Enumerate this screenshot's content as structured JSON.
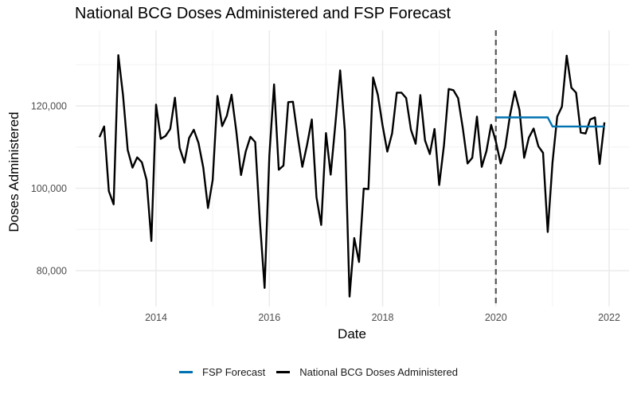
{
  "chart_data": {
    "type": "line",
    "title": "National BCG Doses Administered and FSP Forecast",
    "xlabel": "Date",
    "ylabel": "Doses Administered",
    "x_ticks": [
      "2014",
      "2016",
      "2018",
      "2020",
      "2022"
    ],
    "y_ticks": [
      "80,000",
      "100,000",
      "120,000"
    ],
    "y_tick_values": [
      80000,
      100000,
      120000
    ],
    "xlim": [
      "2012-11",
      "2022-03"
    ],
    "ylim": [
      70000,
      135000
    ],
    "grid": true,
    "legend_position": "bottom",
    "vline": {
      "date": "2020-01",
      "style": "dashed",
      "color": "#555555"
    },
    "series": [
      {
        "name": "National BCG Doses Administered",
        "color": "#000000",
        "start": "2013-01",
        "frequency": "monthly",
        "values": [
          112400,
          115000,
          99300,
          96100,
          132300,
          122600,
          109300,
          105000,
          107500,
          106300,
          102000,
          87200,
          120300,
          112000,
          112700,
          114400,
          122000,
          109800,
          106200,
          112200,
          114200,
          111000,
          105000,
          95200,
          102000,
          122400,
          115100,
          117600,
          122700,
          113800,
          103200,
          108900,
          112500,
          111200,
          92000,
          75800,
          108000,
          125200,
          104500,
          105500,
          120900,
          121000,
          112700,
          105200,
          110600,
          116700,
          97800,
          91100,
          113400,
          103300,
          115600,
          128600,
          114000,
          73700,
          87900,
          82100,
          99900,
          99800,
          126900,
          122600,
          115200,
          108900,
          113300,
          123200,
          123200,
          121900,
          114200,
          110800,
          122600,
          111600,
          108300,
          114400,
          100800,
          110500,
          124100,
          123800,
          121900,
          114500,
          106000,
          107400,
          117400,
          105200,
          109000,
          115400,
          111300,
          106000,
          110000,
          117700,
          123500,
          119000,
          107400,
          112300,
          114500,
          110200,
          108600,
          89400,
          106300,
          117400,
          119800,
          132200,
          124400,
          123200,
          113500,
          113300,
          116700,
          117200,
          105900,
          116000
        ]
      },
      {
        "name": "FSP Forecast",
        "color": "#0072B2",
        "start": "2020-01",
        "frequency": "monthly",
        "values": [
          117200,
          117200,
          117200,
          117200,
          117200,
          117200,
          117200,
          117200,
          117200,
          117200,
          117200,
          117200,
          115000,
          115000,
          115000,
          115000,
          115000,
          115000,
          115000,
          115000,
          115000,
          115000,
          115000,
          115000
        ]
      }
    ],
    "legend": [
      {
        "label": "FSP Forecast",
        "color": "#0072B2"
      },
      {
        "label": "National BCG Doses Administered",
        "color": "#000000"
      }
    ]
  }
}
